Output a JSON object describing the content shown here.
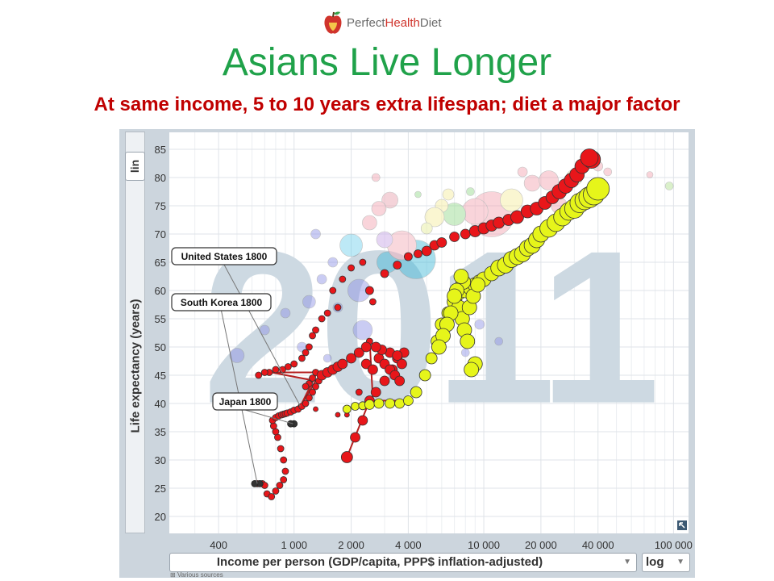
{
  "logo": {
    "text_a": "Perfect",
    "text_b": "Health",
    "text_c": "Diet"
  },
  "title": "Asians Live Longer",
  "subtitle": "At same income, 5 to 10 years extra lifespan; diet a major factor",
  "controls": {
    "y_scale": "lin",
    "x_scale": "log",
    "sources": "Various sources"
  },
  "colors": {
    "title": "#20a24a",
    "subtitle": "#c00000",
    "us": "#e8161a",
    "asia": "#e6f51a",
    "year": "#cdd9e2"
  },
  "chart_data": {
    "type": "scatter",
    "xlabel": "Income per person (GDP/capita, PPP$ inflation-adjusted)",
    "ylabel": "Life expectancy (years)",
    "xscale": "log",
    "xlim": [
      220,
      120000
    ],
    "ylim": [
      17,
      88
    ],
    "x_ticks": [
      400,
      1000,
      2000,
      4000,
      10000,
      20000,
      40000,
      100000
    ],
    "x_tick_labels": [
      "400",
      "1 000",
      "2 000",
      "4 000",
      "10 000",
      "20 000",
      "40 000",
      "100 000"
    ],
    "y_ticks": [
      20,
      25,
      30,
      35,
      40,
      45,
      50,
      55,
      60,
      65,
      70,
      75,
      80,
      85
    ],
    "watermark": "2011",
    "annotations": [
      {
        "text": "United States 1800",
        "x": 1080,
        "y": 39.5
      },
      {
        "text": "South Korea 1800",
        "x": 640,
        "y": 25.8
      },
      {
        "text": "Japan 1800",
        "x": 990,
        "y": 36.4
      }
    ],
    "series": [
      {
        "x": [
          1080,
          1300,
          1700,
          1900,
          2200,
          2500,
          2600,
          2300,
          2000,
          1800,
          1600,
          1700,
          1500,
          1400,
          1300,
          1250,
          1200,
          1150,
          1100,
          1000,
          930,
          870,
          800,
          740,
          700,
          650
        ],
        "y": [
          39.5,
          39,
          38,
          38,
          42,
          51,
          58,
          65,
          64,
          62,
          60,
          57,
          56,
          55,
          53,
          52,
          50,
          49,
          48,
          47,
          46.5,
          46,
          46,
          45.5,
          45.5,
          45
        ],
        "size": [
          3,
          3,
          3,
          3,
          4,
          4,
          4,
          4,
          4,
          4,
          4,
          4,
          4,
          4,
          4,
          4,
          4,
          4,
          4,
          4,
          4,
          4,
          4,
          4,
          4,
          4
        ]
      },
      {
        "x": [
          2500,
          3000,
          3500,
          4000,
          4500,
          5000,
          5500,
          6000,
          7000,
          8000,
          9000,
          10000,
          11000,
          12000,
          13500,
          15000,
          17000,
          19000,
          21000,
          23000,
          25000,
          27000,
          29000,
          31000,
          33000
        ],
        "y": [
          60,
          63,
          64.5,
          66,
          66.5,
          67,
          68,
          68.5,
          69.5,
          70,
          70.5,
          71,
          71.5,
          72,
          72.5,
          73,
          74,
          74.5,
          75.5,
          76.5,
          77.5,
          78.5,
          79.5,
          80.5,
          82
        ],
        "size": [
          5,
          5,
          5,
          5,
          5,
          6,
          6,
          6,
          6,
          6,
          7,
          7,
          7,
          7,
          7,
          8,
          8,
          8,
          8,
          8,
          9,
          9,
          9,
          9,
          9
        ]
      },
      {
        "x": [
          37000,
          36000
        ],
        "y": [
          83.2,
          83.5
        ],
        "size": [
          11,
          11
        ]
      },
      {
        "x": [
          640,
          680,
          700,
          720,
          760,
          800,
          840,
          880,
          900,
          880,
          850,
          820,
          800,
          780,
          770,
          800,
          830,
          860,
          880,
          900,
          920,
          960,
          1000,
          1050,
          1100,
          1150,
          1200,
          1250,
          1300,
          1350,
          1400,
          1300,
          1250,
          1200,
          1150
        ],
        "y": [
          25.8,
          25.8,
          25.5,
          24,
          23.5,
          24.5,
          25.5,
          26.5,
          28,
          30,
          32,
          34,
          35,
          36,
          37,
          37.5,
          37.8,
          38,
          38.1,
          38.2,
          38.3,
          38.5,
          38.8,
          39,
          39.5,
          40,
          41,
          42,
          43,
          44,
          45,
          45.5,
          44.5,
          43.5,
          43
        ],
        "size": [
          4,
          4,
          4,
          4,
          4,
          4,
          4,
          4,
          4,
          4,
          4,
          4,
          4,
          4,
          4,
          4,
          4,
          4,
          4,
          4,
          4,
          4,
          4,
          4,
          4,
          4,
          4,
          4,
          4,
          4,
          4,
          4,
          4,
          4,
          4
        ]
      },
      {
        "x": [
          1900,
          2100,
          2300,
          2500,
          2700,
          3000,
          3300,
          3500,
          3800
        ],
        "y": [
          30.5,
          34,
          37,
          40.5,
          42,
          44,
          46,
          48,
          49
        ],
        "size": [
          7,
          6,
          6,
          6,
          6,
          6,
          6,
          6,
          6
        ]
      },
      {
        "x": [
          1900,
          2100,
          2300,
          2500,
          2800,
          3200,
          3600,
          4000,
          4400,
          4900,
          5300,
          5700,
          6000,
          6500,
          7000,
          7300,
          7600,
          8000,
          8500,
          9000,
          9500,
          10000,
          11000,
          12000,
          13000,
          14000,
          15000,
          16000,
          17000,
          18000,
          19000,
          20000,
          22000,
          24000,
          26000,
          28000,
          30000,
          32000,
          34000,
          36000,
          38000,
          40000
        ],
        "y": [
          39,
          39.5,
          39.6,
          39.8,
          40,
          40,
          40,
          40.5,
          42,
          45,
          48,
          51,
          54,
          56,
          58,
          59.5,
          60.5,
          60,
          60.5,
          61,
          61.5,
          62,
          63,
          64,
          64.5,
          65.5,
          66,
          66.5,
          67.5,
          68,
          69,
          70,
          71,
          72,
          73,
          74,
          74.5,
          75.5,
          76,
          76.5,
          77,
          78
        ],
        "size": [
          5,
          5,
          5,
          6,
          6,
          6,
          6,
          6,
          7,
          7,
          7,
          8,
          8,
          8,
          9,
          9,
          9,
          9,
          9,
          9,
          9,
          9,
          9,
          10,
          10,
          10,
          10,
          10,
          10,
          10,
          10,
          10,
          11,
          11,
          11,
          11,
          12,
          12,
          12,
          13,
          13,
          14
        ]
      }
    ]
  }
}
